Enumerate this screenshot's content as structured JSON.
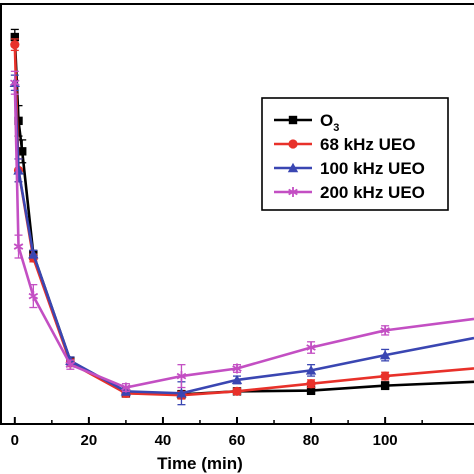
{
  "chart_data": {
    "type": "line",
    "title": "",
    "xlabel": "Time (min)",
    "ylabel": "",
    "xlim": [
      -4,
      124
    ],
    "ylim": [
      0,
      105
    ],
    "xticks": [
      0,
      20,
      40,
      60,
      80,
      100
    ],
    "grid": false,
    "legend": {
      "placement": "top-right",
      "entries": [
        "O3",
        "68 kHz UEO",
        "100 kHz UEO",
        "200 kHz UEO"
      ]
    },
    "legend_labels": {
      "O3_base": "O",
      "O3_sub": "3"
    },
    "series": [
      {
        "name": "O3",
        "color": "#000000",
        "marker": "square",
        "x": [
          0,
          1,
          2,
          5,
          15,
          30,
          45,
          60,
          80,
          100,
          124
        ],
        "y": [
          100,
          78,
          70,
          43,
          15,
          6.5,
          6.2,
          7,
          7.2,
          8.5,
          9.5
        ],
        "err": [
          2,
          4,
          3,
          1,
          1,
          1,
          1,
          0.8,
          1,
          1,
          0
        ]
      },
      {
        "name": "68 kHz UEO",
        "color": "#e8312a",
        "marker": "circle",
        "x": [
          0,
          1,
          5,
          15,
          30,
          45,
          60,
          80,
          100,
          124
        ],
        "y": [
          98,
          65,
          42,
          14.5,
          6.5,
          6,
          7,
          9,
          11,
          13
        ],
        "err": [
          1.5,
          3,
          1,
          1,
          1,
          1,
          0.8,
          1,
          1,
          0
        ]
      },
      {
        "name": "100 kHz UEO",
        "color": "#3a46b2",
        "marker": "triangle",
        "x": [
          0,
          1,
          5,
          15,
          30,
          45,
          60,
          80,
          100,
          124
        ],
        "y": [
          88,
          65,
          43,
          15,
          7,
          6.5,
          10,
          12.5,
          16.5,
          21
        ],
        "err": [
          2,
          3,
          1,
          1,
          1,
          3,
          1,
          1.5,
          1.5,
          0
        ]
      },
      {
        "name": "200 kHz UEO",
        "color": "#c34fc3",
        "marker": "star",
        "x": [
          0,
          1,
          5,
          15,
          30,
          45,
          60,
          80,
          100,
          124
        ],
        "y": [
          88,
          45,
          32,
          14,
          8,
          11,
          13,
          18.5,
          23,
          26
        ],
        "err": [
          3,
          3,
          3,
          1.2,
          1,
          3,
          1,
          1.5,
          1.2,
          0
        ]
      }
    ]
  }
}
